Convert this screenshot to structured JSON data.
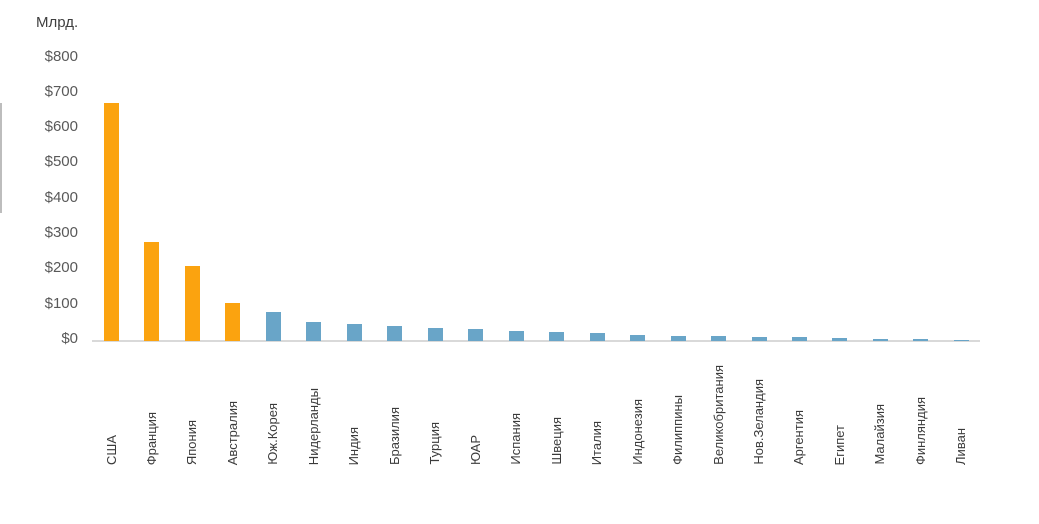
{
  "chart_data": {
    "type": "bar",
    "title": "",
    "unit_label": "Млрд.",
    "y_tick_prefix": "$",
    "y_ticks": [
      0,
      100,
      200,
      300,
      400,
      500,
      600,
      700,
      800
    ],
    "ylim": [
      0,
      800
    ],
    "grid": "off",
    "legend": "none",
    "categories": [
      "США",
      "Франция",
      "Япония",
      "Австралия",
      "Юж.Корея",
      "Нидерланды",
      "Индия",
      "Бразилия",
      "Турция",
      "ЮАР",
      "Испания",
      "Швеция",
      "Италия",
      "Индонезия",
      "Филиппины",
      "Великобритания",
      "Нов.Зеландия",
      "Аргентия",
      "Египет",
      "Малайзия",
      "Финляндия",
      "Ливан"
    ],
    "values": [
      675,
      281,
      212,
      107,
      81,
      54,
      48,
      43,
      38,
      33,
      27,
      26,
      22,
      17,
      15,
      13,
      12,
      10,
      8,
      7,
      6,
      1
    ],
    "highlight_count": 4,
    "colors": {
      "highlight_bar": "#FBA30F",
      "default_bar": "#69A5C8",
      "tick_text": "#595959",
      "label_text": "#3b3b3b",
      "axis_line": "#d9d9d9"
    }
  }
}
